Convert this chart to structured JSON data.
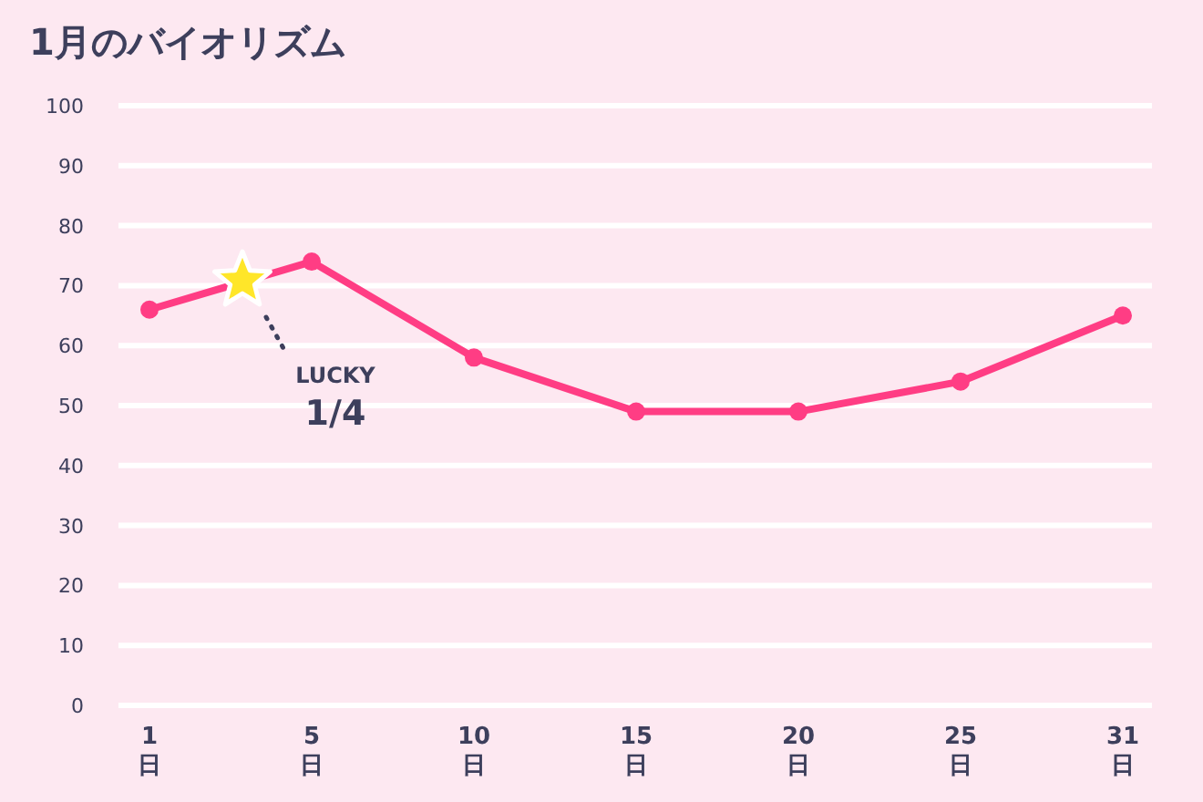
{
  "chart_data": {
    "type": "line",
    "title": "1月のバイオリズム",
    "categories": [
      "1\n日",
      "5\n日",
      "10\n日",
      "15\n日",
      "20\n日",
      "25\n日",
      "31\n日"
    ],
    "series": [
      {
        "color": "#ff3d84",
        "values": [
          66,
          74,
          58,
          49,
          49,
          54,
          65
        ]
      }
    ],
    "ylim": [
      0,
      100
    ],
    "yticks": [
      0,
      10,
      20,
      30,
      40,
      50,
      60,
      70,
      80,
      90,
      100
    ],
    "grid": "y",
    "marker": "circle",
    "line_style": "solid",
    "annotations": [
      "LUCKY",
      "1/4"
    ]
  }
}
